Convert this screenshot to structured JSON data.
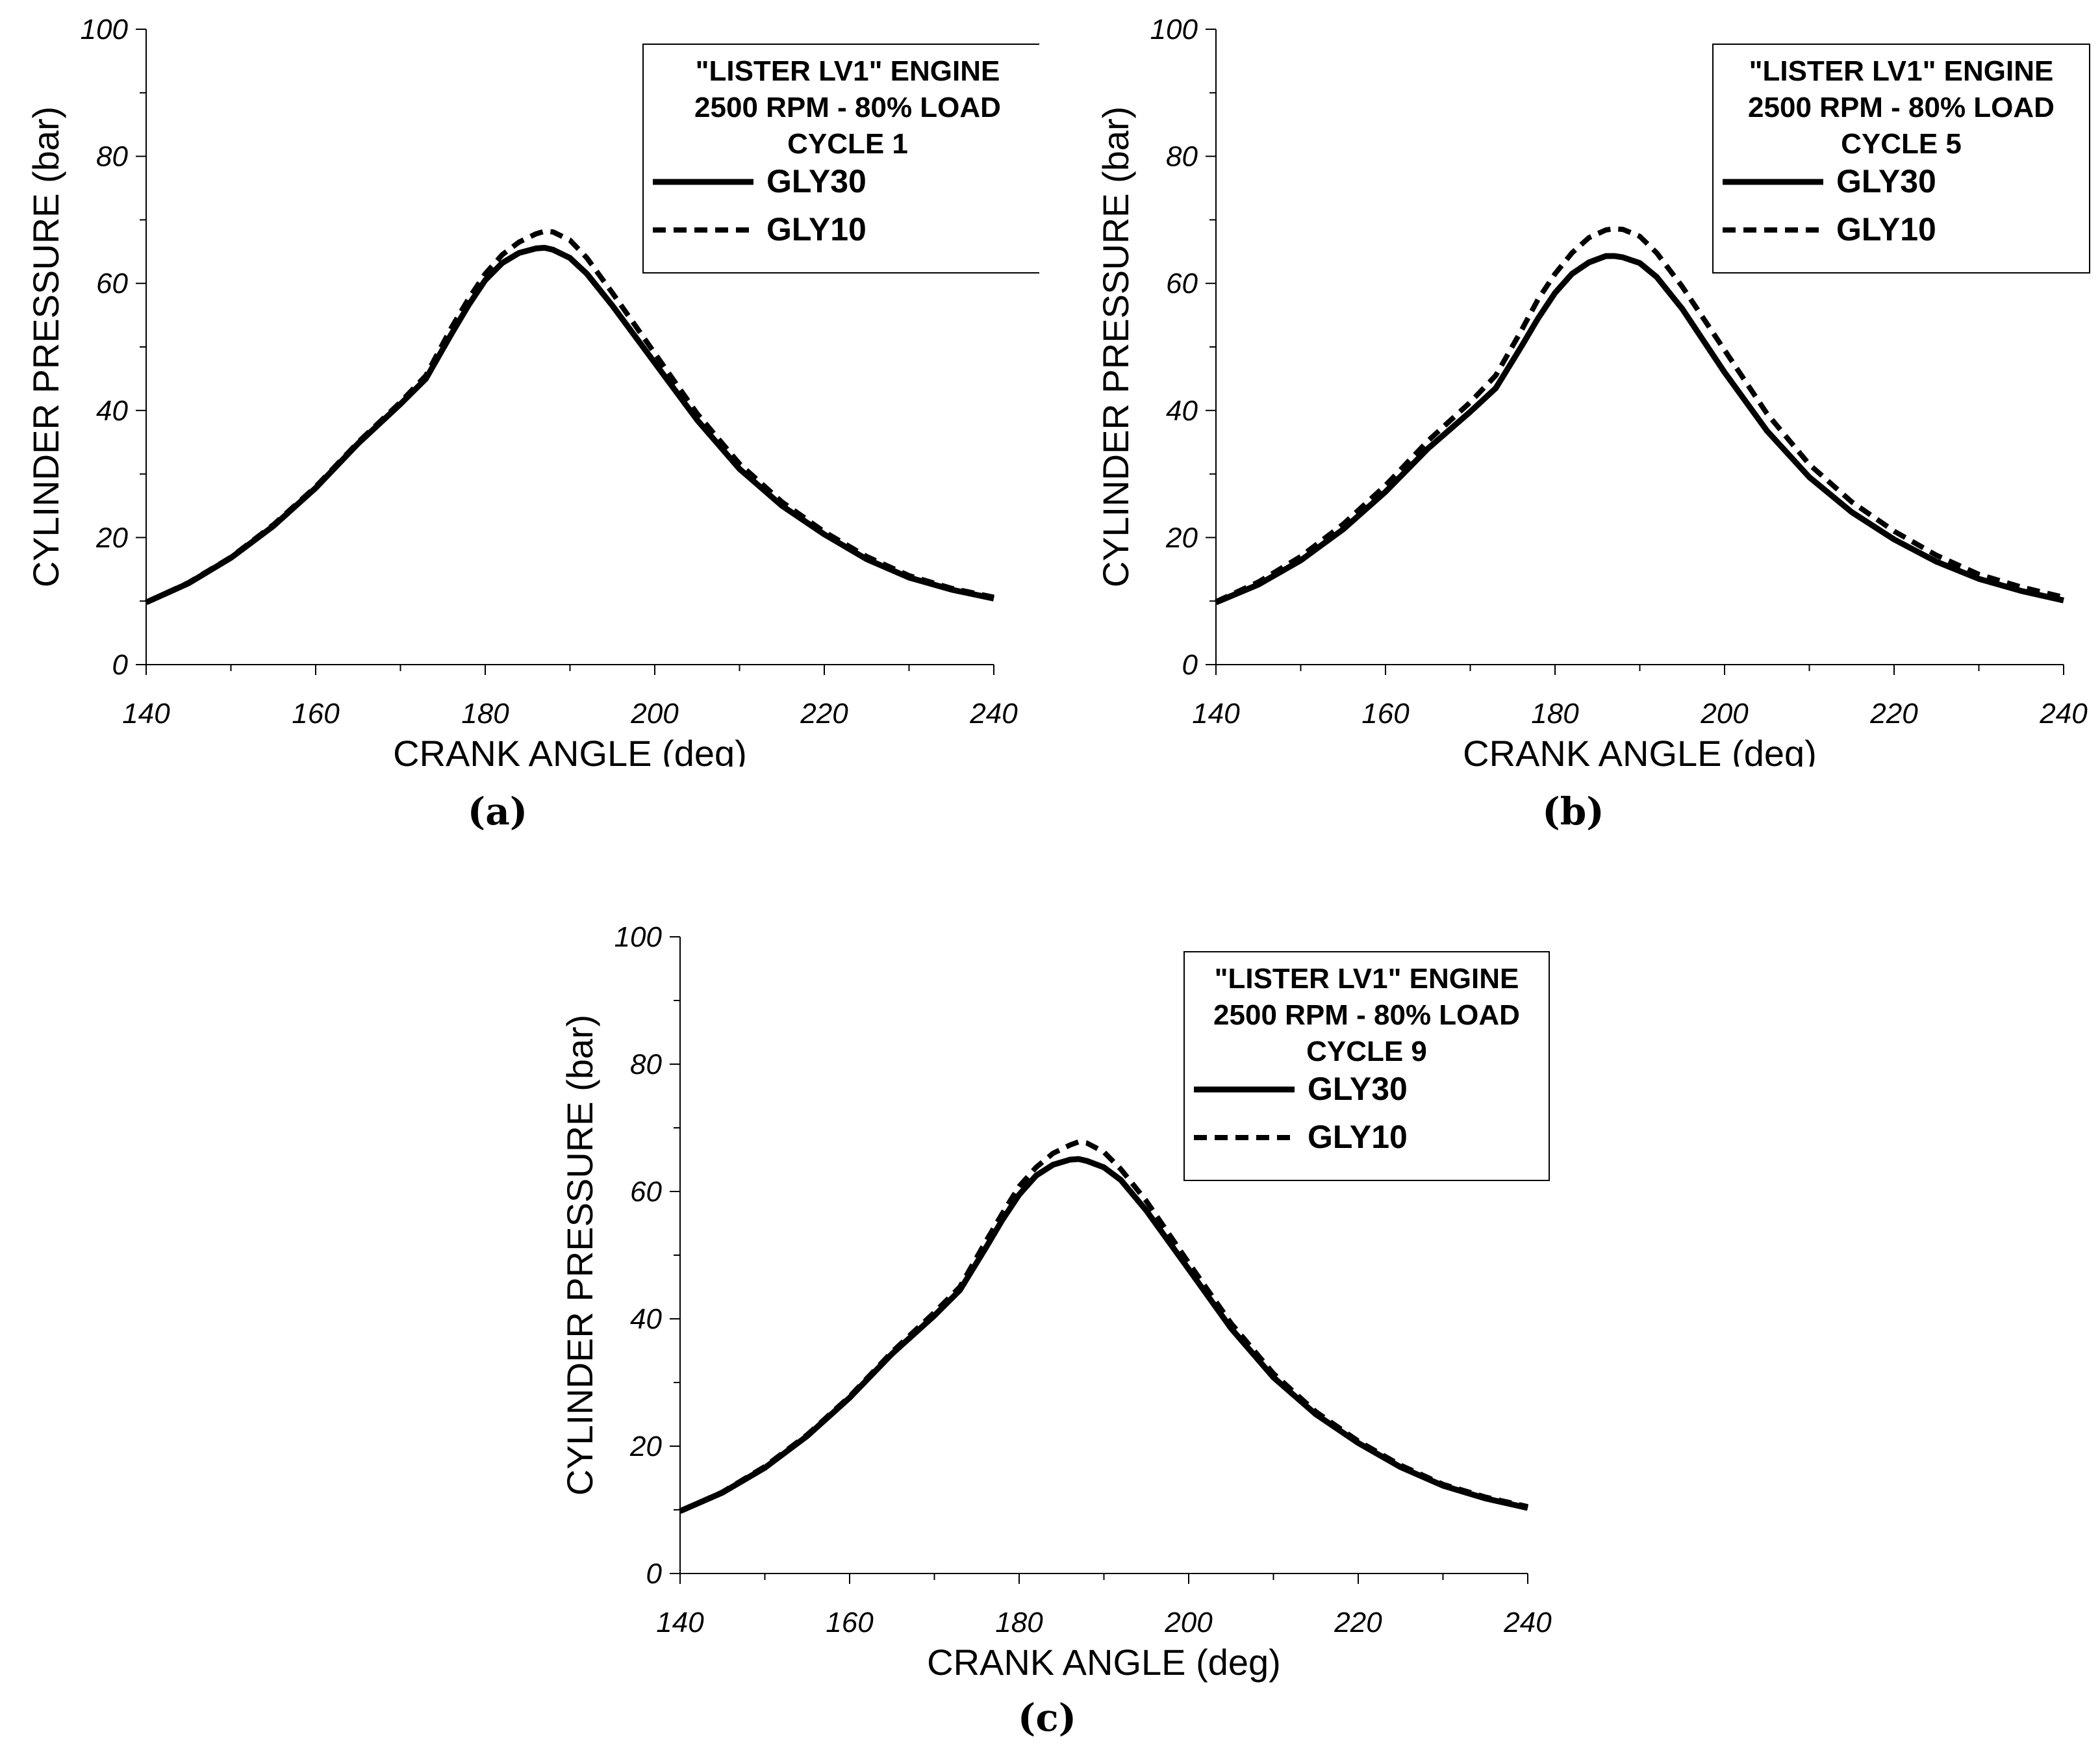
{
  "chart_data": [
    {
      "type": "line",
      "panel_label": "(a)",
      "xlabel": "CRANK ANGLE (deg)",
      "ylabel": "CYLINDER PRESSURE (bar)",
      "xlim": [
        140,
        240
      ],
      "ylim": [
        0,
        100
      ],
      "xticks": [
        140,
        160,
        180,
        200,
        220,
        240
      ],
      "yticks": [
        0,
        20,
        40,
        60,
        80,
        100
      ],
      "grid": false,
      "legend_position": "top-right",
      "legend_title": [
        "\"LISTER LV1\" ENGINE",
        "2500 RPM - 80% LOAD",
        "CYCLE 1"
      ],
      "x": [
        140,
        145,
        150,
        155,
        160,
        165,
        170,
        173,
        176,
        178,
        180,
        182,
        184,
        186,
        187,
        188,
        190,
        192,
        195,
        200,
        205,
        210,
        215,
        220,
        225,
        230,
        235,
        240
      ],
      "series": [
        {
          "name": "GLY30",
          "style": "solid",
          "values": [
            9.8,
            12.8,
            16.8,
            21.8,
            27.8,
            34.8,
            41.0,
            45.0,
            52.0,
            56.5,
            60.5,
            63.2,
            64.8,
            65.5,
            65.6,
            65.3,
            64.0,
            61.5,
            56.5,
            47.5,
            38.5,
            30.8,
            25.0,
            20.5,
            16.6,
            13.7,
            11.8,
            10.4
          ]
        },
        {
          "name": "GLY10",
          "style": "dashed",
          "values": [
            9.8,
            12.9,
            16.9,
            22.0,
            28.0,
            35.0,
            41.3,
            45.5,
            53.0,
            57.5,
            61.5,
            64.5,
            66.5,
            67.8,
            68.2,
            68.1,
            66.8,
            64.0,
            58.5,
            49.0,
            39.5,
            31.6,
            25.6,
            20.9,
            17.0,
            14.0,
            12.0,
            10.6
          ]
        }
      ]
    },
    {
      "type": "line",
      "panel_label": "(b)",
      "xlabel": "CRANK ANGLE (deg)",
      "ylabel": "CYLINDER PRESSURE (bar)",
      "xlim": [
        140,
        240
      ],
      "ylim": [
        0,
        100
      ],
      "xticks": [
        140,
        160,
        180,
        200,
        220,
        240
      ],
      "yticks": [
        0,
        20,
        40,
        60,
        80,
        100
      ],
      "grid": false,
      "legend_position": "top-right",
      "legend_title": [
        "\"LISTER LV1\" ENGINE",
        "2500 RPM - 80% LOAD",
        "CYCLE 5"
      ],
      "x": [
        140,
        145,
        150,
        155,
        160,
        165,
        170,
        173,
        176,
        178,
        180,
        182,
        184,
        186,
        187,
        188,
        190,
        192,
        195,
        200,
        205,
        210,
        215,
        220,
        225,
        230,
        235,
        240
      ],
      "series": [
        {
          "name": "GLY30",
          "style": "solid",
          "values": [
            9.8,
            12.6,
            16.4,
            21.3,
            27.2,
            34.0,
            39.8,
            43.5,
            50.0,
            54.5,
            58.5,
            61.5,
            63.3,
            64.3,
            64.3,
            64.1,
            63.2,
            61.0,
            56.0,
            46.0,
            36.8,
            29.5,
            24.0,
            19.7,
            16.2,
            13.5,
            11.6,
            10.1
          ]
        },
        {
          "name": "GLY10",
          "style": "dashed",
          "values": [
            9.9,
            13.0,
            17.0,
            22.1,
            28.2,
            35.2,
            41.3,
            45.5,
            52.5,
            57.5,
            61.5,
            64.8,
            67.2,
            68.4,
            68.6,
            68.5,
            67.4,
            64.8,
            59.5,
            49.5,
            39.5,
            31.5,
            25.6,
            21.0,
            17.2,
            14.2,
            12.2,
            10.6
          ]
        }
      ]
    },
    {
      "type": "line",
      "panel_label": "(c)",
      "xlabel": "CRANK ANGLE (deg)",
      "ylabel": "CYLINDER PRESSURE (bar)",
      "xlim": [
        140,
        240
      ],
      "ylim": [
        0,
        100
      ],
      "xticks": [
        140,
        160,
        180,
        200,
        220,
        240
      ],
      "yticks": [
        0,
        20,
        40,
        60,
        80,
        100
      ],
      "grid": false,
      "legend_position": "top-right",
      "legend_title": [
        "\"LISTER LV1\" ENGINE",
        "2500 RPM - 80% LOAD",
        "CYCLE 9"
      ],
      "x": [
        140,
        145,
        150,
        155,
        160,
        165,
        170,
        173,
        176,
        178,
        180,
        182,
        184,
        186,
        187,
        188,
        190,
        192,
        195,
        200,
        205,
        210,
        215,
        220,
        225,
        230,
        235,
        240
      ],
      "series": [
        {
          "name": "GLY30",
          "style": "solid",
          "values": [
            9.8,
            12.7,
            16.6,
            21.6,
            27.6,
            34.5,
            40.5,
            44.5,
            51.0,
            55.5,
            59.5,
            62.5,
            64.2,
            65.0,
            65.1,
            64.8,
            63.8,
            61.8,
            57.0,
            47.8,
            38.5,
            30.8,
            25.0,
            20.5,
            16.7,
            13.8,
            11.8,
            10.3
          ]
        },
        {
          "name": "GLY10",
          "style": "dashed",
          "values": [
            9.8,
            12.8,
            16.8,
            21.8,
            27.8,
            34.8,
            41.0,
            45.0,
            52.0,
            56.5,
            60.8,
            63.8,
            66.0,
            67.3,
            67.8,
            67.6,
            66.2,
            63.5,
            58.5,
            48.8,
            39.3,
            31.4,
            25.4,
            20.8,
            17.0,
            14.0,
            12.0,
            10.5
          ]
        }
      ]
    }
  ]
}
